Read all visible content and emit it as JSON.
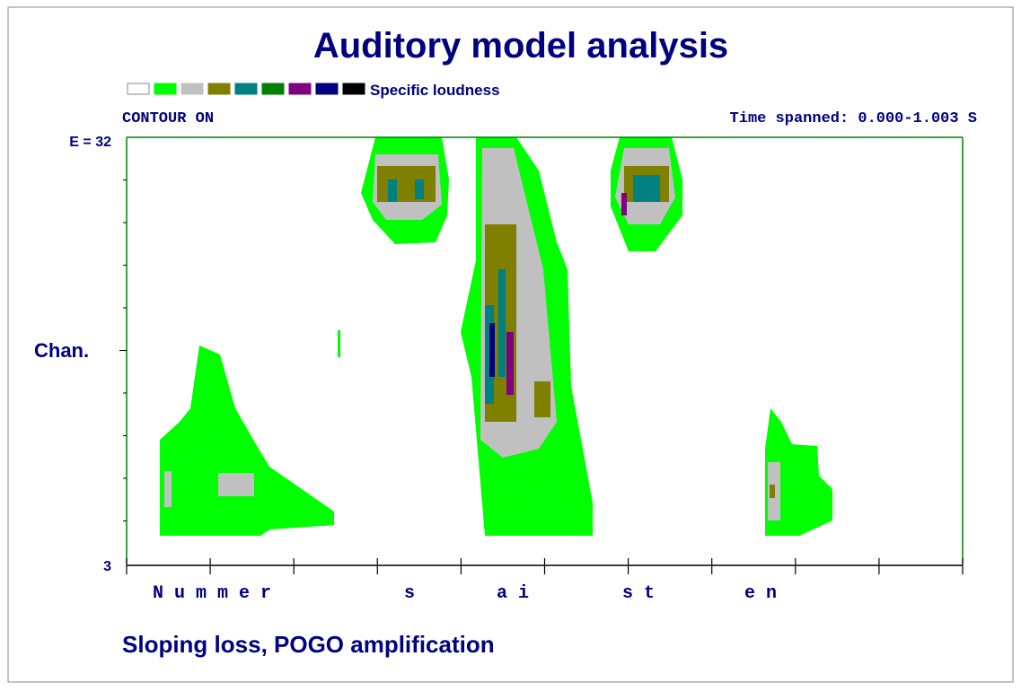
{
  "header": {
    "title": "Auditory model analysis"
  },
  "legend": {
    "label": "Specific loudness"
  },
  "status": {
    "contour": "CONTOUR ON",
    "time": "Time spanned: 0.000-1.003 S"
  },
  "axis": {
    "top": "E = 32",
    "middle": "Chan.",
    "bottom": "3"
  },
  "segments": [
    "N u m m e r",
    "s",
    "a i",
    "s t",
    "e n"
  ],
  "caption": "Sloping loss, POGO amplification"
}
